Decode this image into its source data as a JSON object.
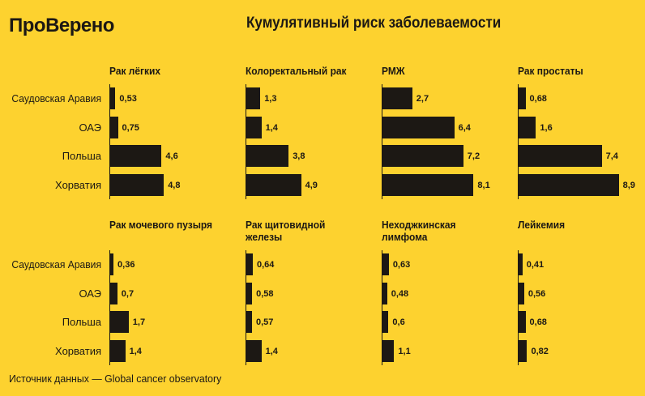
{
  "header": {
    "logo": "ПроВерено",
    "title": "Кумулятивный риск заболеваемости"
  },
  "footer": {
    "source": "Источник данных — Global cancer observatory"
  },
  "colors": {
    "background": "#FDD22F",
    "bar": "#1c1814"
  },
  "chart_data": {
    "type": "bar",
    "orientation": "horizontal",
    "categories": [
      "Саудовская Аравия",
      "ОАЭ",
      "Польша",
      "Хорватия"
    ],
    "panels": [
      {
        "title": "Рак лёгких",
        "values": [
          0.53,
          0.75,
          4.6,
          4.8
        ],
        "labels": [
          "0,53",
          "0,75",
          "4,6",
          "4,8"
        ]
      },
      {
        "title": "Колоректальный рак",
        "values": [
          1.3,
          1.4,
          3.8,
          4.9
        ],
        "labels": [
          "1,3",
          "1,4",
          "3,8",
          "4,9"
        ]
      },
      {
        "title": "РМЖ",
        "values": [
          2.7,
          6.4,
          7.2,
          8.1
        ],
        "labels": [
          "2,7",
          "6,4",
          "7,2",
          "8,1"
        ]
      },
      {
        "title": "Рак простаты",
        "values": [
          0.68,
          1.6,
          7.4,
          8.9
        ],
        "labels": [
          "0,68",
          "1,6",
          "7,4",
          "8,9"
        ]
      },
      {
        "title": "Рак мочевого пузыря",
        "values": [
          0.36,
          0.7,
          1.7,
          1.4
        ],
        "labels": [
          "0,36",
          "0,7",
          "1,7",
          "1,4"
        ]
      },
      {
        "title": "Рак щитовидной железы",
        "values": [
          0.64,
          0.58,
          0.57,
          1.4
        ],
        "labels": [
          "0,64",
          "0,58",
          "0,57",
          "1,4"
        ]
      },
      {
        "title": "Неходжкинская лимфома",
        "values": [
          0.63,
          0.48,
          0.6,
          1.1
        ],
        "labels": [
          "0,63",
          "0,48",
          "0,6",
          "1,1"
        ]
      },
      {
        "title": "Лейкемия",
        "values": [
          0.41,
          0.56,
          0.68,
          0.82
        ],
        "labels": [
          "0,41",
          "0,56",
          "0,68",
          "0,82"
        ]
      }
    ]
  }
}
